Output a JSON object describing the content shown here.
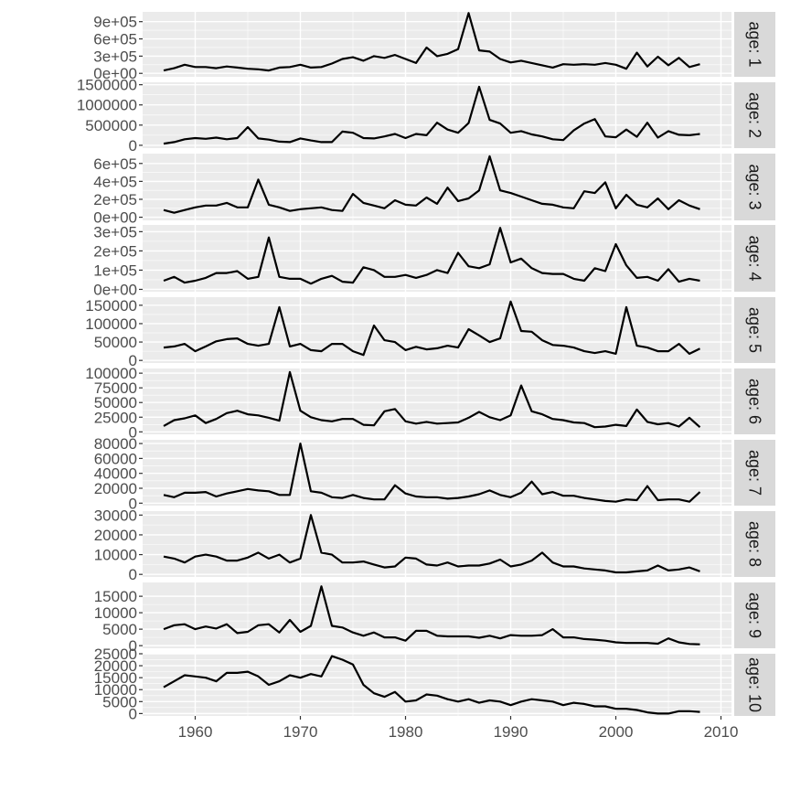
{
  "chart_data": {
    "type": "line",
    "facet_layout": "stacked rows, free y scales, strip labels on right",
    "x": [
      1957,
      1958,
      1959,
      1960,
      1961,
      1962,
      1963,
      1964,
      1965,
      1966,
      1967,
      1968,
      1969,
      1970,
      1971,
      1972,
      1973,
      1974,
      1975,
      1976,
      1977,
      1978,
      1979,
      1980,
      1981,
      1982,
      1983,
      1984,
      1985,
      1986,
      1987,
      1988,
      1989,
      1990,
      1991,
      1992,
      1993,
      1994,
      1995,
      1996,
      1997,
      1998,
      1999,
      2000,
      2001,
      2002,
      2003,
      2004,
      2005,
      2006,
      2007,
      2008
    ],
    "xlim": [
      1955,
      2011
    ],
    "x_ticks": [
      1960,
      1970,
      1980,
      1990,
      2000,
      2010
    ],
    "x_tick_labels": [
      "1960",
      "1970",
      "1980",
      "1990",
      "2000",
      "2010"
    ],
    "grid": true,
    "panels": [
      {
        "strip": "age: 1",
        "ylim": [
          -60000,
          1070000
        ],
        "y_ticks": [
          0,
          300000,
          600000,
          900000
        ],
        "y_tick_labels": [
          "0e+00",
          "3e+05",
          "6e+05",
          "9e+05"
        ],
        "values": [
          50000,
          90000,
          150000,
          110000,
          110000,
          90000,
          120000,
          100000,
          80000,
          70000,
          50000,
          100000,
          110000,
          150000,
          100000,
          110000,
          170000,
          250000,
          280000,
          220000,
          300000,
          270000,
          320000,
          250000,
          180000,
          450000,
          300000,
          340000,
          420000,
          1050000,
          400000,
          380000,
          250000,
          190000,
          220000,
          180000,
          140000,
          100000,
          160000,
          150000,
          160000,
          150000,
          180000,
          150000,
          80000,
          360000,
          120000,
          290000,
          140000,
          270000,
          110000,
          160000
        ]
      },
      {
        "strip": "age: 2",
        "ylim": [
          -70000,
          1560000
        ],
        "y_ticks": [
          0,
          500000,
          1000000,
          1500000
        ],
        "y_tick_labels": [
          "0",
          "500000",
          "1000000",
          "1500000"
        ],
        "values": [
          40000,
          80000,
          150000,
          180000,
          160000,
          190000,
          150000,
          180000,
          450000,
          170000,
          140000,
          90000,
          80000,
          170000,
          120000,
          80000,
          80000,
          340000,
          310000,
          180000,
          170000,
          220000,
          280000,
          180000,
          280000,
          250000,
          560000,
          390000,
          310000,
          550000,
          1450000,
          630000,
          540000,
          310000,
          350000,
          270000,
          220000,
          150000,
          130000,
          370000,
          540000,
          650000,
          220000,
          200000,
          390000,
          210000,
          560000,
          190000,
          350000,
          260000,
          250000,
          280000
        ]
      },
      {
        "strip": "age: 3",
        "ylim": [
          -35000,
          710000
        ],
        "y_ticks": [
          0,
          200000,
          400000,
          600000
        ],
        "y_tick_labels": [
          "0e+00",
          "2e+05",
          "4e+05",
          "6e+05"
        ],
        "values": [
          80000,
          50000,
          80000,
          110000,
          130000,
          130000,
          160000,
          110000,
          110000,
          420000,
          140000,
          110000,
          70000,
          90000,
          100000,
          110000,
          80000,
          70000,
          260000,
          160000,
          130000,
          100000,
          190000,
          140000,
          130000,
          220000,
          150000,
          330000,
          180000,
          210000,
          300000,
          680000,
          300000,
          270000,
          230000,
          190000,
          150000,
          140000,
          110000,
          100000,
          290000,
          270000,
          390000,
          100000,
          250000,
          140000,
          110000,
          210000,
          90000,
          190000,
          130000,
          90000
        ]
      },
      {
        "strip": "age: 4",
        "ylim": [
          -12000,
          335000
        ],
        "y_ticks": [
          0,
          100000,
          200000,
          300000
        ],
        "y_tick_labels": [
          "0e+00",
          "1e+05",
          "2e+05",
          "3e+05"
        ],
        "values": [
          45000,
          65000,
          35000,
          45000,
          60000,
          85000,
          85000,
          95000,
          55000,
          65000,
          270000,
          65000,
          55000,
          55000,
          30000,
          55000,
          70000,
          40000,
          35000,
          115000,
          100000,
          65000,
          65000,
          75000,
          60000,
          75000,
          100000,
          85000,
          190000,
          120000,
          110000,
          130000,
          320000,
          140000,
          160000,
          110000,
          85000,
          80000,
          80000,
          55000,
          45000,
          110000,
          95000,
          235000,
          125000,
          60000,
          65000,
          45000,
          105000,
          40000,
          55000,
          45000
        ]
      },
      {
        "strip": "age: 5",
        "ylim": [
          -7000,
          172000
        ],
        "y_ticks": [
          0,
          50000,
          100000,
          150000
        ],
        "y_tick_labels": [
          "0",
          "50000",
          "100000",
          "150000"
        ],
        "values": [
          35000,
          38000,
          45000,
          25000,
          38000,
          52000,
          58000,
          60000,
          45000,
          40000,
          45000,
          145000,
          38000,
          45000,
          28000,
          25000,
          45000,
          45000,
          25000,
          15000,
          95000,
          55000,
          50000,
          28000,
          37000,
          30000,
          33000,
          40000,
          35000,
          85000,
          68000,
          50000,
          60000,
          160000,
          80000,
          78000,
          55000,
          42000,
          40000,
          35000,
          25000,
          20000,
          25000,
          18000,
          145000,
          40000,
          35000,
          25000,
          25000,
          45000,
          18000,
          32000
        ]
      },
      {
        "strip": "age: 6",
        "ylim": [
          -4200,
          108000
        ],
        "y_ticks": [
          0,
          25000,
          50000,
          75000,
          100000
        ],
        "y_tick_labels": [
          "0",
          "25000",
          "50000",
          "75000",
          "100000"
        ],
        "values": [
          10000,
          20000,
          23000,
          28000,
          15000,
          22000,
          32000,
          36000,
          30000,
          28000,
          24000,
          19000,
          102000,
          36000,
          25000,
          20000,
          18000,
          22000,
          22000,
          12000,
          11000,
          35000,
          39000,
          18000,
          14000,
          17000,
          14000,
          15000,
          16000,
          24000,
          34000,
          25000,
          20000,
          28000,
          79000,
          35000,
          30000,
          22000,
          20000,
          16000,
          15000,
          8000,
          9000,
          12000,
          10000,
          38000,
          17000,
          13000,
          15000,
          9000,
          24000,
          8000
        ]
      },
      {
        "strip": "age: 7",
        "ylim": [
          -3300,
          85000
        ],
        "y_ticks": [
          0,
          20000,
          40000,
          60000,
          80000
        ],
        "y_tick_labels": [
          "0",
          "20000",
          "40000",
          "60000",
          "80000"
        ],
        "values": [
          11000,
          8000,
          14000,
          14000,
          15000,
          9000,
          13000,
          16000,
          19000,
          17000,
          16000,
          11000,
          11000,
          80000,
          16000,
          14000,
          8000,
          7000,
          11000,
          7000,
          5000,
          5000,
          24000,
          13000,
          9000,
          8000,
          8000,
          6000,
          7000,
          9000,
          12000,
          17000,
          11000,
          8000,
          14000,
          29000,
          12000,
          15000,
          10000,
          10000,
          7000,
          5000,
          3000,
          2000,
          5000,
          4000,
          23000,
          4000,
          5000,
          5000,
          2000,
          15000
        ]
      },
      {
        "strip": "age: 8",
        "ylim": [
          -1300,
          32000
        ],
        "y_ticks": [
          0,
          10000,
          20000,
          30000
        ],
        "y_tick_labels": [
          "0",
          "10000",
          "20000",
          "30000"
        ],
        "values": [
          9000,
          8000,
          6000,
          9000,
          10000,
          9000,
          7000,
          7000,
          8500,
          11000,
          8000,
          10000,
          6000,
          8000,
          30000,
          11000,
          10000,
          6000,
          6000,
          6500,
          5000,
          3500,
          4000,
          8500,
          8000,
          5000,
          4500,
          6000,
          4000,
          4500,
          4500,
          5500,
          7500,
          4000,
          5000,
          7000,
          11000,
          6000,
          4000,
          4000,
          3000,
          2500,
          2000,
          1000,
          1000,
          1500,
          2000,
          4500,
          2000,
          2500,
          3500,
          1500
        ]
      },
      {
        "strip": "age: 9",
        "ylim": [
          -800,
          19200
        ],
        "y_ticks": [
          0,
          5000,
          10000,
          15000
        ],
        "y_tick_labels": [
          "0",
          "5000",
          "10000",
          "15000"
        ],
        "values": [
          5000,
          6200,
          6500,
          5000,
          5800,
          5200,
          6500,
          3800,
          4200,
          6200,
          6500,
          4000,
          7800,
          4200,
          6000,
          18000,
          6000,
          5500,
          4000,
          3000,
          4000,
          2500,
          2500,
          1500,
          4500,
          4500,
          3000,
          2800,
          2800,
          2800,
          2400,
          3000,
          2200,
          3200,
          3000,
          3000,
          3200,
          5000,
          2500,
          2500,
          2000,
          1800,
          1500,
          1000,
          800,
          800,
          800,
          600,
          2200,
          1000,
          500,
          400
        ]
      },
      {
        "strip": "age: 10",
        "ylim": [
          -1000,
          25000
        ],
        "y_ticks": [
          0,
          5000,
          10000,
          15000,
          20000,
          25000
        ],
        "y_tick_labels": [
          "0",
          "5000",
          "10000",
          "15000",
          "20000",
          "25000"
        ],
        "values": [
          11000,
          13500,
          16000,
          15500,
          15000,
          13500,
          17000,
          17000,
          17500,
          15500,
          12000,
          13500,
          16000,
          15000,
          16500,
          15500,
          24000,
          22500,
          20500,
          12000,
          8500,
          7000,
          9000,
          5000,
          5500,
          8000,
          7500,
          6000,
          5000,
          6000,
          4500,
          5500,
          5000,
          3500,
          5000,
          6000,
          5500,
          5000,
          3500,
          4500,
          4000,
          3000,
          3000,
          2000,
          2000,
          1500,
          500,
          0,
          0,
          1000,
          1000,
          700
        ]
      }
    ]
  }
}
